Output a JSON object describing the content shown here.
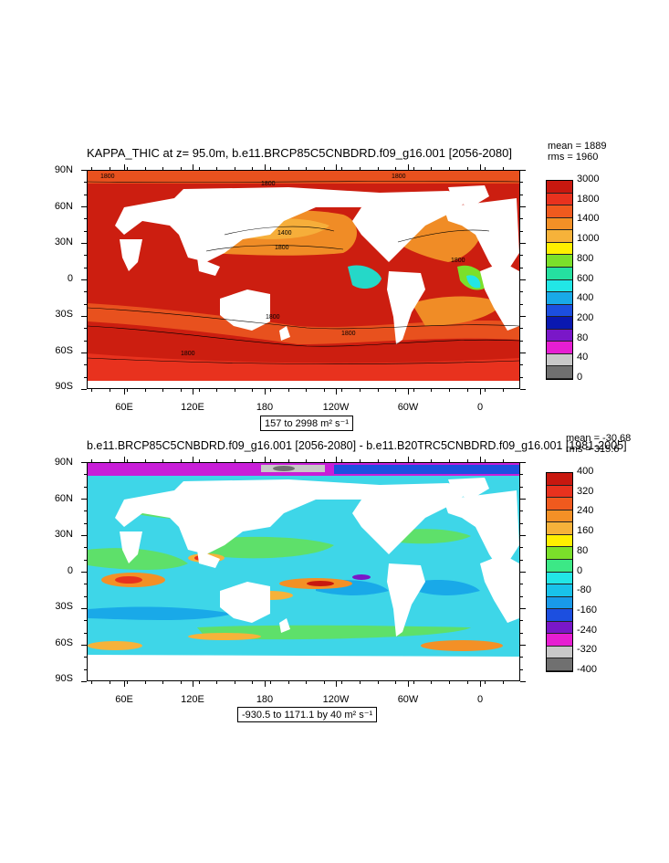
{
  "panel1": {
    "title": "KAPPA_THIC at z=  95.0m, b.e11.BRCP85C5CNBDRD.f09_g16.001 [2056-2080]",
    "mean": "mean = 1889",
    "rms": "rms = 1960",
    "range": "157 to 2998 m² s⁻¹",
    "contour_labels": [
      "1800",
      "1800",
      "1800",
      "1400",
      "1800",
      "1800",
      "1800",
      "1800",
      "1800"
    ],
    "colorbar_labels": [
      "3000",
      "1800",
      "1400",
      "1000",
      "800",
      "600",
      "400",
      "200",
      "80",
      "40",
      "0"
    ],
    "colorbar_colors": [
      "#c8180f",
      "#e8321e",
      "#f05a1e",
      "#f39026",
      "#f6b23a",
      "#ffef00",
      "#7be02a",
      "#25e0a0",
      "#22e6e6",
      "#19a9e8",
      "#1c4fe0",
      "#0a18b0",
      "#7a17c8",
      "#e61ed2",
      "#c8c8c8",
      "#707070"
    ]
  },
  "panel2": {
    "title": "b.e11.BRCP85C5CNBDRD.f09_g16.001 [2056-2080] - b.e11.B20TRC5CNBDRD.f09_g16.001 [1981-2005]",
    "mean": "mean = -30.68",
    "rms": "rms = 315.6",
    "range": "-930.5 to 1171.1 by 40 m² s⁻¹",
    "colorbar_labels": [
      "400",
      "320",
      "240",
      "160",
      "80",
      "0",
      "-80",
      "-160",
      "-240",
      "-320",
      "-400"
    ],
    "colorbar_colors": [
      "#c8180f",
      "#e8321e",
      "#f05a1e",
      "#f39026",
      "#f6b23a",
      "#ffef00",
      "#7be02a",
      "#3ce886",
      "#22e6e6",
      "#19c2ea",
      "#199ae8",
      "#1c4fe0",
      "#7a17c8",
      "#e61ed2",
      "#c8c8c8",
      "#707070"
    ]
  },
  "axes": {
    "lat_labels": [
      "90N",
      "60N",
      "30N",
      "0",
      "30S",
      "60S",
      "90S"
    ],
    "lon_labels": [
      "60E",
      "120E",
      "180",
      "120W",
      "60W",
      "0"
    ]
  }
}
